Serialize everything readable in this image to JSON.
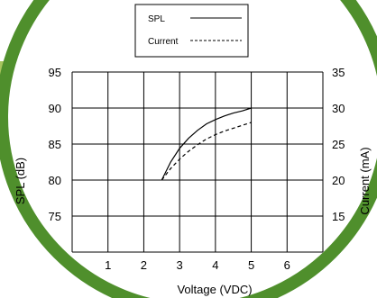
{
  "chart_data": {
    "type": "line",
    "title": "",
    "xlabel": "Voltage (VDC)",
    "ylabel": "SPL (dB)",
    "y2label": "Current (mA)",
    "xlim": [
      0,
      7
    ],
    "ylim": [
      70,
      95
    ],
    "y2lim": [
      10,
      35
    ],
    "x_ticks": [
      "1",
      "2",
      "3",
      "4",
      "5",
      "6"
    ],
    "y_ticks": [
      "75",
      "80",
      "85",
      "90",
      "95"
    ],
    "y2_ticks": [
      "15",
      "20",
      "25",
      "30",
      "35"
    ],
    "grid": true,
    "legend_position": "top-center",
    "series": [
      {
        "name": "SPL",
        "axis": "left",
        "style": "solid",
        "color": "#000000",
        "x": [
          2.5,
          2.75,
          3.0,
          3.25,
          3.5,
          3.75,
          4.0,
          4.25,
          4.5,
          4.75,
          5.0
        ],
        "y": [
          80.0,
          82.5,
          84.4,
          85.8,
          86.9,
          87.8,
          88.4,
          88.9,
          89.3,
          89.6,
          90.0
        ]
      },
      {
        "name": "Current",
        "axis": "right",
        "style": "dashed",
        "color": "#000000",
        "x": [
          2.5,
          2.75,
          3.0,
          3.25,
          3.5,
          3.75,
          4.0,
          4.25,
          4.5,
          4.75,
          5.0
        ],
        "y": [
          20.0,
          21.6,
          22.9,
          24.0,
          24.9,
          25.7,
          26.3,
          26.8,
          27.2,
          27.6,
          28.0
        ]
      }
    ]
  },
  "colors": {
    "circle_fill": "#ffffff",
    "circle_stroke": "#4f8f2c",
    "accent_band": "#a8c45e",
    "grid": "#000000",
    "text": "#000000"
  }
}
